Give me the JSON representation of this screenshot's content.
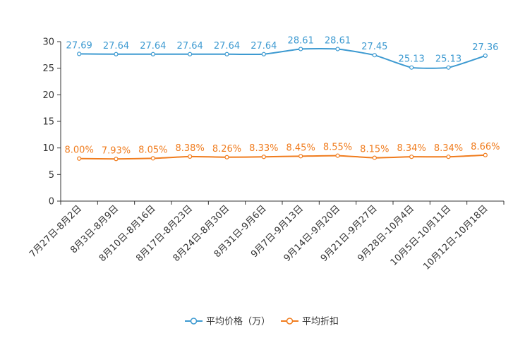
{
  "chart_data": {
    "type": "line",
    "title": "",
    "xlabel": "",
    "ylabel": "",
    "ylim": [
      0,
      30
    ],
    "yticks": [
      0,
      5,
      10,
      15,
      20,
      25,
      30
    ],
    "grid": false,
    "legend_position": "bottom",
    "categories": [
      "7月27日-8月2日",
      "8月3日-8月9日",
      "8月10日-8月16日",
      "8月17日-8月23日",
      "8月24日-8月30日",
      "8月31日-9月6日",
      "9月7日-9月13日",
      "9月14日-9月20日",
      "9月21日-9月27日",
      "9月28日-10月4日",
      "10月5日-10月11日",
      "10月12日-10月18日"
    ],
    "series": [
      {
        "name": "平均价格（万）",
        "color": "#3d9ad1",
        "values": [
          27.69,
          27.64,
          27.64,
          27.64,
          27.64,
          27.64,
          28.61,
          28.61,
          27.45,
          25.13,
          25.13,
          27.36
        ],
        "labels": [
          "27.69",
          "27.64",
          "27.64",
          "27.64",
          "27.64",
          "27.64",
          "28.61",
          "28.61",
          "27.45",
          "25.13",
          "25.13",
          "27.36"
        ]
      },
      {
        "name": "平均折扣",
        "color": "#f07c1e",
        "values": [
          8.0,
          7.93,
          8.05,
          8.38,
          8.26,
          8.33,
          8.45,
          8.55,
          8.15,
          8.34,
          8.34,
          8.66
        ],
        "labels": [
          "8.00%",
          "7.93%",
          "8.05%",
          "8.38%",
          "8.26%",
          "8.33%",
          "8.45%",
          "8.55%",
          "8.15%",
          "8.34%",
          "8.34%",
          "8.66%"
        ]
      }
    ]
  }
}
